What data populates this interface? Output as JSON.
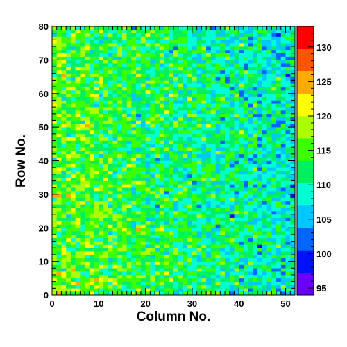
{
  "chart_data": {
    "type": "heatmap",
    "xlabel": "Column No.",
    "ylabel": "Row No.",
    "xlim": [
      0,
      52
    ],
    "ylim": [
      0,
      80
    ],
    "x_ticks": [
      0,
      10,
      20,
      30,
      40,
      50
    ],
    "y_ticks": [
      0,
      10,
      20,
      30,
      40,
      50,
      60,
      70,
      80
    ],
    "nx": 52,
    "ny": 80,
    "bin_width": 1,
    "z_range": [
      94,
      133
    ],
    "z_ticks": [
      95,
      100,
      105,
      110,
      115,
      120,
      125,
      130
    ],
    "colormap": [
      "#6a00ff",
      "#0011ff",
      "#0066ff",
      "#00c8ff",
      "#00ffd5",
      "#00f060",
      "#3cff00",
      "#aaff00",
      "#ffff00",
      "#ffaa00",
      "#ff5500",
      "#ff0000"
    ],
    "trend": {
      "description_values_mean_at_column_0": 116,
      "mean_at_column_52": 109,
      "spread": 7
    },
    "grid": false
  }
}
